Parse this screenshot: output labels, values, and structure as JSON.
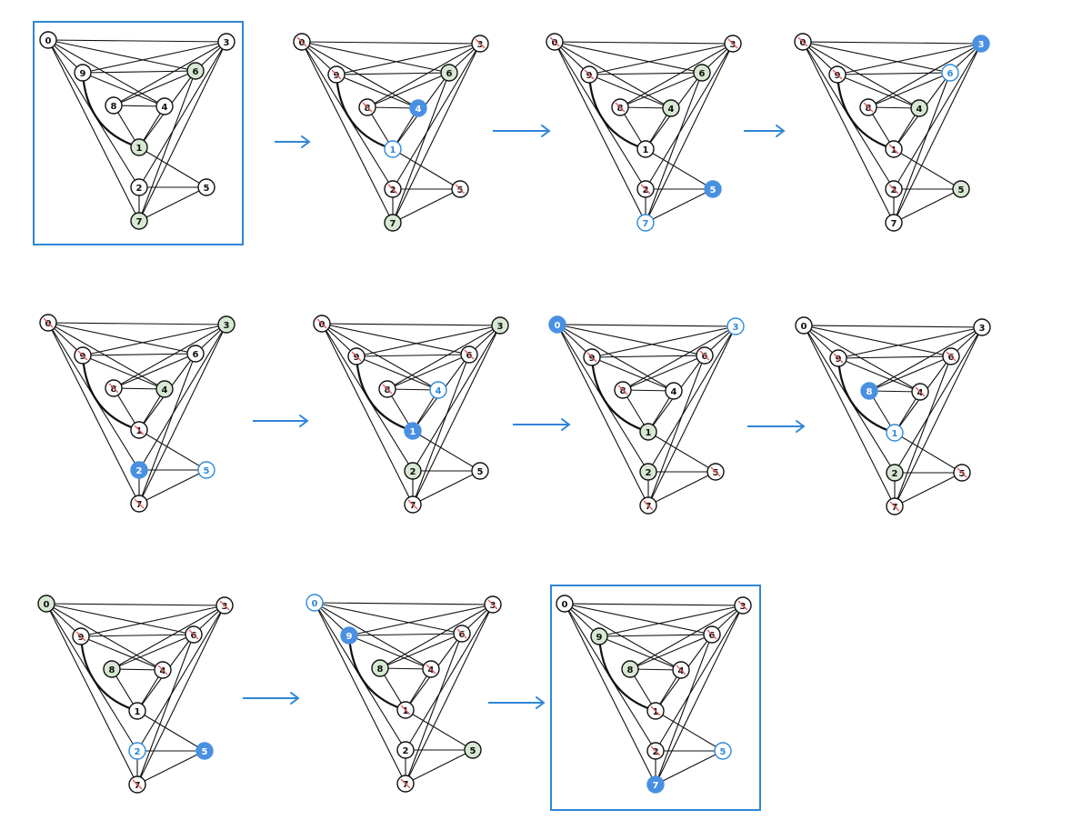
{
  "colors": {
    "edge": "#111111",
    "node_fill": "#ffffff",
    "node_stroke": "#111111",
    "label": "#111111",
    "green_fill": "#d7e8d3",
    "blue_fill": "#4a90e2",
    "blue_outline": "#2f8ad8",
    "blue_text": "#2f8ad8",
    "selected_label": "#ffffff",
    "cross_mark": "#e05a5a",
    "arrow": "#2f86d6",
    "frame": "#2f86d6"
  },
  "diagram": {
    "node_ids": [
      "0",
      "1",
      "2",
      "3",
      "4",
      "5",
      "6",
      "7",
      "8",
      "9"
    ],
    "edges": [
      [
        "0",
        "3"
      ],
      [
        "0",
        "9"
      ],
      [
        "0",
        "6"
      ],
      [
        "0",
        "4"
      ],
      [
        "0",
        "7"
      ],
      [
        "0",
        "2"
      ],
      [
        "3",
        "9"
      ],
      [
        "3",
        "6"
      ],
      [
        "3",
        "8"
      ],
      [
        "3",
        "2"
      ],
      [
        "3",
        "7"
      ],
      [
        "9",
        "6"
      ],
      [
        "9",
        "4"
      ],
      [
        "9",
        "1"
      ],
      [
        "6",
        "8"
      ],
      [
        "6",
        "7"
      ],
      [
        "6",
        "1"
      ],
      [
        "8",
        "4"
      ],
      [
        "8",
        "1"
      ],
      [
        "4",
        "1"
      ],
      [
        "1",
        "5"
      ],
      [
        "2",
        "5"
      ],
      [
        "2",
        "7"
      ],
      [
        "5",
        "7"
      ]
    ],
    "arrow_labels": [],
    "states": [
      {
        "id": "s1",
        "framed": true,
        "nodes": {
          "0": "plain",
          "1": "green",
          "2": "plain",
          "3": "plain",
          "4": "plain",
          "5": "plain",
          "6": "green",
          "7": "green",
          "8": "plain",
          "9": "plain"
        }
      },
      {
        "id": "s2",
        "framed": false,
        "nodes": {
          "0": "crossed",
          "1": "blue-outline",
          "2": "crossed",
          "3": "crossed",
          "4": "blue",
          "5": "crossed",
          "6": "green",
          "7": "green",
          "8": "crossed",
          "9": "crossed"
        }
      },
      {
        "id": "s3",
        "framed": false,
        "nodes": {
          "0": "crossed",
          "1": "plain",
          "2": "crossed",
          "3": "crossed",
          "4": "green",
          "5": "blue",
          "6": "green",
          "7": "blue-outline",
          "8": "crossed",
          "9": "crossed"
        }
      },
      {
        "id": "s4",
        "framed": false,
        "nodes": {
          "0": "crossed",
          "1": "crossed",
          "2": "crossed",
          "3": "blue",
          "4": "green",
          "5": "green",
          "6": "blue-outline",
          "7": "plain",
          "8": "crossed",
          "9": "crossed"
        }
      },
      {
        "id": "s5",
        "framed": false,
        "nodes": {
          "0": "crossed",
          "1": "crossed",
          "2": "blue",
          "3": "green",
          "4": "green",
          "5": "blue-outline",
          "6": "plain",
          "7": "crossed",
          "8": "crossed",
          "9": "crossed"
        }
      },
      {
        "id": "s6",
        "framed": false,
        "nodes": {
          "0": "crossed",
          "1": "blue",
          "2": "green",
          "3": "green",
          "4": "blue-outline",
          "5": "plain",
          "6": "crossed",
          "7": "crossed",
          "8": "crossed",
          "9": "crossed"
        }
      },
      {
        "id": "s7",
        "framed": false,
        "nodes": {
          "0": "blue",
          "1": "green",
          "2": "green",
          "3": "blue-outline",
          "4": "plain",
          "5": "crossed",
          "6": "crossed",
          "7": "crossed",
          "8": "crossed",
          "9": "crossed"
        }
      },
      {
        "id": "s8",
        "framed": false,
        "nodes": {
          "0": "plain",
          "1": "blue-outline",
          "2": "green",
          "3": "plain",
          "4": "crossed",
          "5": "crossed",
          "6": "crossed",
          "7": "crossed",
          "8": "blue",
          "9": "crossed"
        }
      },
      {
        "id": "s9",
        "framed": false,
        "nodes": {
          "0": "green",
          "1": "plain",
          "2": "blue-outline",
          "3": "crossed",
          "4": "crossed",
          "5": "blue",
          "6": "crossed",
          "7": "crossed",
          "8": "green",
          "9": "crossed"
        }
      },
      {
        "id": "s10",
        "framed": false,
        "nodes": {
          "0": "blue-outline",
          "1": "crossed",
          "2": "plain",
          "3": "crossed",
          "4": "crossed",
          "5": "green",
          "6": "crossed",
          "7": "crossed",
          "8": "green",
          "9": "blue"
        }
      },
      {
        "id": "s11",
        "framed": true,
        "nodes": {
          "0": "plain",
          "1": "crossed",
          "2": "crossed",
          "3": "crossed",
          "4": "crossed",
          "5": "blue-outline",
          "6": "crossed",
          "7": "blue",
          "8": "green",
          "9": "green"
        }
      }
    ]
  }
}
